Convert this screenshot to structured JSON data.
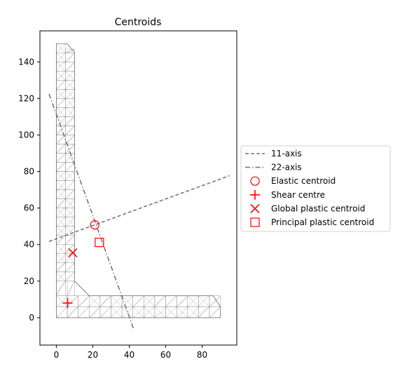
{
  "chart_data": {
    "type": "scatter",
    "title": "Centroids",
    "xlabel": "",
    "ylabel": "",
    "xlim": [
      -9,
      99
    ],
    "ylim": [
      -15,
      157
    ],
    "x_ticks": [
      0,
      20,
      40,
      60,
      80
    ],
    "y_ticks": [
      0,
      20,
      40,
      60,
      80,
      100,
      120,
      140
    ],
    "section_outline": [
      [
        0,
        0
      ],
      [
        90,
        0
      ],
      [
        90,
        6
      ],
      [
        86,
        12
      ],
      [
        18,
        12
      ],
      [
        10,
        20
      ],
      [
        10,
        145
      ],
      [
        6,
        150
      ],
      [
        0,
        150
      ]
    ],
    "series": [
      {
        "name": "11-axis",
        "style": "dashed",
        "color": "#777777",
        "x": [
          -4,
          95
        ],
        "y": [
          41.7,
          77.7
        ]
      },
      {
        "name": "22-axis",
        "style": "dashdot",
        "color": "#777777",
        "x": [
          -4,
          42.5
        ],
        "y": [
          122.5,
          -6.5
        ]
      },
      {
        "name": "Elastic centroid",
        "marker": "circle",
        "color": "#ff0000",
        "x": [
          21.1
        ],
        "y": [
          50.8
        ]
      },
      {
        "name": "Shear centre",
        "marker": "plus",
        "color": "#ff0000",
        "x": [
          6.2
        ],
        "y": [
          8
        ]
      },
      {
        "name": "Global plastic centroid",
        "marker": "x",
        "color": "#ff0000",
        "x": [
          9
        ],
        "y": [
          35.5
        ]
      },
      {
        "name": "Principal plastic centroid",
        "marker": "square",
        "color": "#ff0000",
        "x": [
          23.6
        ],
        "y": [
          41.2
        ]
      }
    ],
    "legend_placement": "center-right"
  }
}
